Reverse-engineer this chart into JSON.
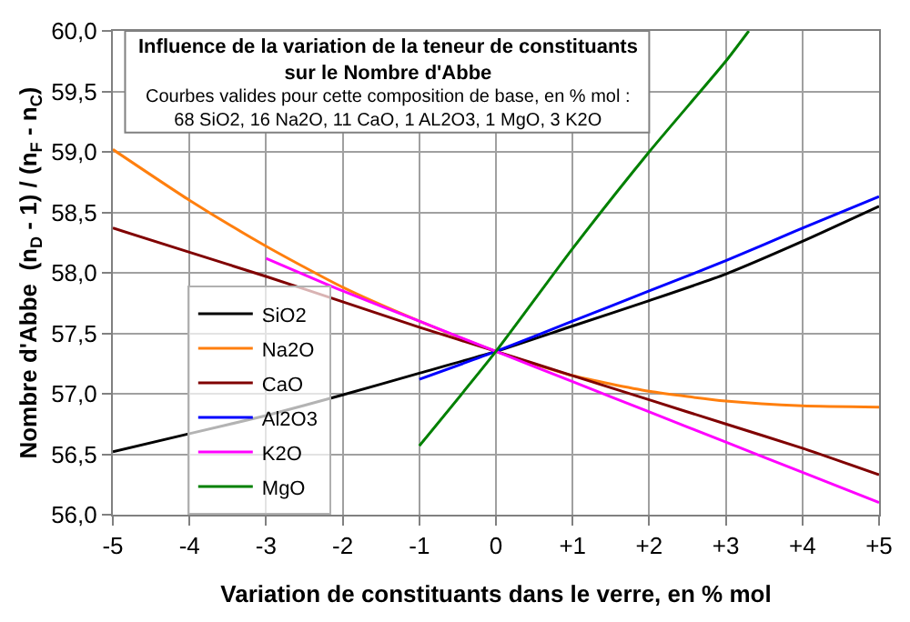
{
  "chart_data": {
    "type": "line",
    "title": "Influence de la variation de la teneur de constituants sur le Nombre d'Abbe",
    "subtitle": "Courbes valides pour cette composition de base, en % mol : 68 SiO2, 16 Na2O, 11 CaO, 1 AL2O3, 1 MgO, 3 K2O",
    "xlabel": "Variation de constituants dans le verre, en % mol",
    "ylabel": "Nombre d'Abbe  (n$_{D}$ - 1) / (n$_{F}$ - n$_{C}$)",
    "xlim": [
      -5,
      5
    ],
    "ylim": [
      56,
      60
    ],
    "xticks": [
      -5,
      -4,
      -3,
      -2,
      -1,
      0,
      {
        "value": 1,
        "label": "+1"
      },
      {
        "value": 2,
        "label": "+2"
      },
      {
        "value": 3,
        "label": "+3"
      },
      {
        "value": 4,
        "label": "+4"
      },
      {
        "value": 5,
        "label": "+5"
      }
    ],
    "yticks": [
      {
        "value": 56,
        "label": "56,0"
      },
      {
        "value": 56.5,
        "label": "56,5"
      },
      {
        "value": 57,
        "label": "57,0"
      },
      {
        "value": 57.5,
        "label": "57,5"
      },
      {
        "value": 58,
        "label": "58,0"
      },
      {
        "value": 58.5,
        "label": "58,5"
      },
      {
        "value": 59,
        "label": "59,0"
      },
      {
        "value": 59.5,
        "label": "59,5"
      },
      {
        "value": 60,
        "label": "60,0"
      }
    ],
    "grid": true,
    "legend": "bottom",
    "marker": "none",
    "line_style": "solid",
    "series": [
      {
        "name": "SiO2",
        "color": "#000000",
        "x": [
          -5,
          -4,
          -3,
          -2,
          -1,
          0,
          1,
          2,
          3,
          4,
          5
        ],
        "values": [
          56.52,
          56.67,
          56.82,
          56.99,
          57.17,
          57.35,
          57.56,
          57.77,
          57.99,
          58.26,
          58.55
        ]
      },
      {
        "name": "Na2O",
        "color": "#ff7f0e",
        "x": [
          -5,
          -4,
          -3,
          -2,
          -1,
          0,
          1,
          2,
          3,
          4,
          5
        ],
        "values": [
          59.02,
          58.6,
          58.22,
          57.88,
          57.6,
          57.35,
          57.15,
          57.02,
          56.94,
          56.9,
          56.89
        ]
      },
      {
        "name": "CaO",
        "color": "#800000",
        "x": [
          -5,
          -4,
          -3,
          -2,
          -1,
          0,
          1,
          2,
          3,
          4,
          5
        ],
        "values": [
          58.37,
          58.17,
          57.97,
          57.76,
          57.55,
          57.35,
          57.15,
          56.95,
          56.75,
          56.55,
          56.33
        ]
      },
      {
        "name": "Al2O3",
        "color": "#0000ff",
        "x": [
          -1,
          0,
          1,
          2,
          3,
          4,
          5
        ],
        "values": [
          57.12,
          57.35,
          57.6,
          57.85,
          58.1,
          58.37,
          58.63
        ]
      },
      {
        "name": "K2O",
        "color": "#ff00ff",
        "x": [
          -3,
          -2,
          -1,
          0,
          1,
          2,
          3,
          4,
          5
        ],
        "values": [
          58.12,
          57.85,
          57.6,
          57.35,
          57.1,
          56.85,
          56.6,
          56.35,
          56.1
        ]
      },
      {
        "name": "MgO",
        "color": "#008000",
        "x": [
          -1,
          0,
          1,
          2,
          3,
          3.3
        ],
        "values": [
          56.57,
          57.35,
          58.2,
          59.0,
          59.75,
          60.0
        ]
      }
    ]
  }
}
